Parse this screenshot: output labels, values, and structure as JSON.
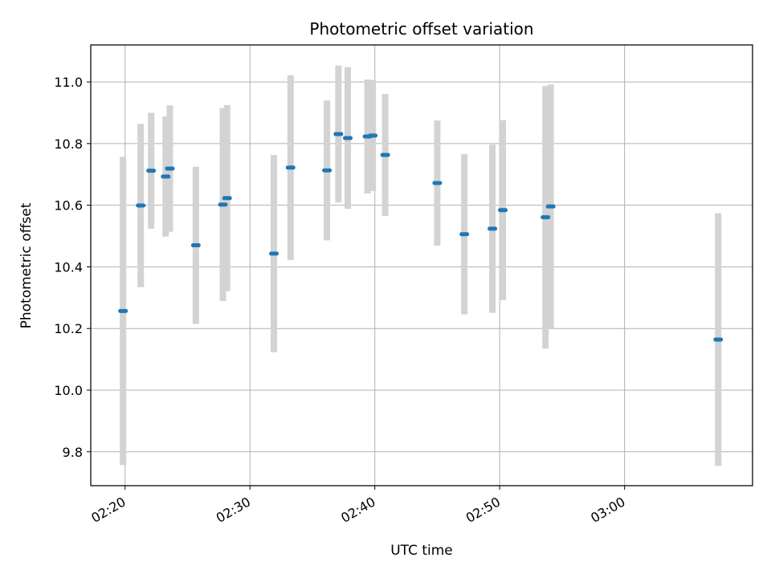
{
  "chart_data": {
    "type": "scatter",
    "title": "Photometric offset variation",
    "xlabel": "UTC time",
    "ylabel": "Photometric offset",
    "x_unit": "UTC time (HH:MM:SS)",
    "xlim": [
      "02:17:15",
      "03:10:15"
    ],
    "ylim": [
      9.69,
      11.12
    ],
    "x_ticks": [
      "02:20",
      "02:30",
      "02:40",
      "02:50",
      "03:00"
    ],
    "y_ticks": [
      "9.8",
      "10.0",
      "10.2",
      "10.4",
      "10.6",
      "10.8",
      "11.0"
    ],
    "grid": true,
    "errorbar_color": "#d3d3d3",
    "marker_color": "#1f77b4",
    "points": [
      {
        "t": "02:19:50",
        "y": 10.257,
        "err": 0.5
      },
      {
        "t": "02:21:15",
        "y": 10.599,
        "err": 0.265
      },
      {
        "t": "02:22:05",
        "y": 10.712,
        "err": 0.188
      },
      {
        "t": "02:23:15",
        "y": 10.693,
        "err": 0.195
      },
      {
        "t": "02:23:35",
        "y": 10.719,
        "err": 0.205
      },
      {
        "t": "02:25:40",
        "y": 10.47,
        "err": 0.255
      },
      {
        "t": "02:27:50",
        "y": 10.602,
        "err": 0.313
      },
      {
        "t": "02:28:10",
        "y": 10.623,
        "err": 0.302
      },
      {
        "t": "02:31:55",
        "y": 10.443,
        "err": 0.32
      },
      {
        "t": "02:33:15",
        "y": 10.722,
        "err": 0.3
      },
      {
        "t": "02:36:10",
        "y": 10.713,
        "err": 0.227
      },
      {
        "t": "02:37:05",
        "y": 10.831,
        "err": 0.222
      },
      {
        "t": "02:37:50",
        "y": 10.818,
        "err": 0.23
      },
      {
        "t": "02:39:25",
        "y": 10.823,
        "err": 0.185
      },
      {
        "t": "02:39:50",
        "y": 10.826,
        "err": 0.18
      },
      {
        "t": "02:40:50",
        "y": 10.763,
        "err": 0.198
      },
      {
        "t": "02:45:00",
        "y": 10.672,
        "err": 0.203
      },
      {
        "t": "02:47:10",
        "y": 10.506,
        "err": 0.26
      },
      {
        "t": "02:49:25",
        "y": 10.524,
        "err": 0.273
      },
      {
        "t": "02:50:15",
        "y": 10.584,
        "err": 0.292
      },
      {
        "t": "02:53:40",
        "y": 10.561,
        "err": 0.426
      },
      {
        "t": "02:54:05",
        "y": 10.596,
        "err": 0.396
      },
      {
        "t": "03:07:30",
        "y": 10.164,
        "err": 0.41
      }
    ]
  }
}
